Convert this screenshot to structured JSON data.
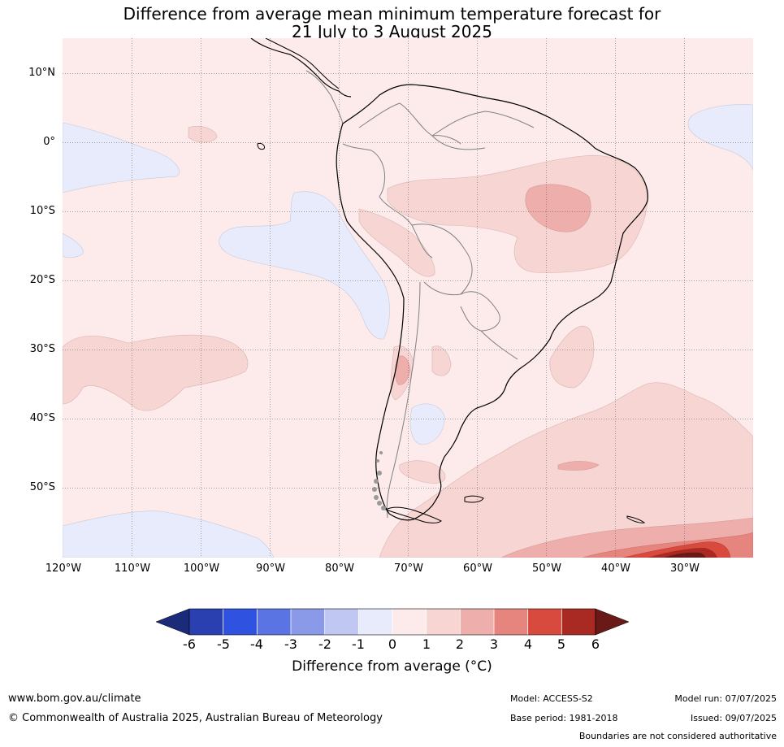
{
  "title": {
    "line1": "Difference from average mean minimum temperature forecast for",
    "line2": "21 July to 3 August 2025"
  },
  "map": {
    "lat_labels": [
      "10°N",
      "0°",
      "10°S",
      "20°S",
      "30°S",
      "40°S",
      "50°S"
    ],
    "lon_labels": [
      "120°W",
      "110°W",
      "100°W",
      "90°W",
      "80°W",
      "70°W",
      "60°W",
      "50°W",
      "40°W",
      "30°W"
    ],
    "background_color": "#fcebea",
    "coast_color": "#000000",
    "border_color": "#808080"
  },
  "colorbar": {
    "ticks": [
      "-6",
      "-5",
      "-4",
      "-3",
      "-2",
      "-1",
      "0",
      "1",
      "2",
      "3",
      "4",
      "5",
      "6"
    ],
    "colors": [
      "#1c2a7a",
      "#2a40b0",
      "#2f52e0",
      "#5b74e4",
      "#8a9ae8",
      "#c0c7f2",
      "#e8ebfb",
      "#fcebea",
      "#f6d5d3",
      "#eeaeab",
      "#e6847e",
      "#d84a3e",
      "#a82a22",
      "#6a1a16"
    ],
    "label": "Difference from average (°C)"
  },
  "footer": {
    "url": "www.bom.gov.au/climate",
    "copyright": "© Commonwealth of Australia 2025, Australian Bureau of Meteorology",
    "model": "Model: ACCESS-S2",
    "base_period": "Base period: 1981-2018",
    "model_run": "Model run: 07/07/2025",
    "issued": "Issued: 09/07/2025",
    "boundaries": "Boundaries are not considered authoritative"
  }
}
